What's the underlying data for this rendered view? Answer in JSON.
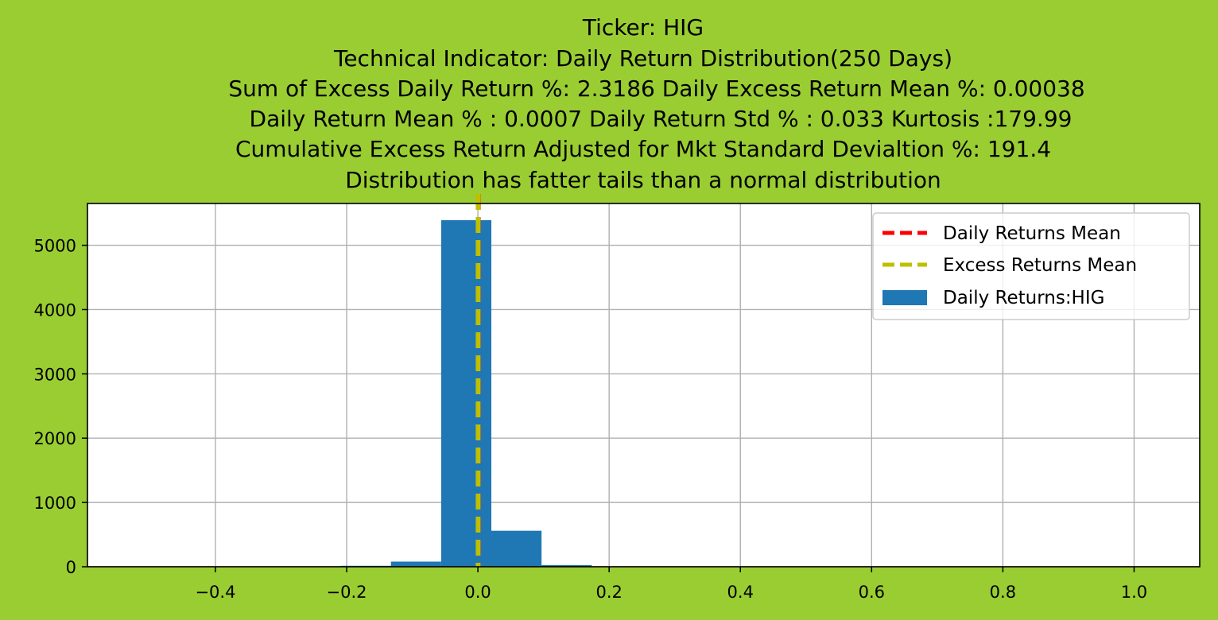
{
  "figure": {
    "background": "#9acd32"
  },
  "chart_data": {
    "type": "bar",
    "title_lines": [
      "Ticker: HIG",
      "Technical Indicator: Daily Return Distribution(250 Days)",
      "Sum of Excess Daily Return %: 2.3186   Daily Excess Return Mean %: 0.00038",
      "Daily Return Mean % : 0.0007    Daily Return Std % : 0.033  Kurtosis :179.99",
      "Cumulative Excess Return Adjusted for Mkt Standard Devialtion %: 191.4",
      "Distribution has fatter tails than a normal distribution"
    ],
    "xlim": [
      -0.595,
      1.1
    ],
    "ylim": [
      0,
      5650
    ],
    "x_ticks": [
      -0.4,
      -0.2,
      0.0,
      0.2,
      0.4,
      0.6,
      0.8,
      1.0
    ],
    "x_tick_labels": [
      "−0.4",
      "−0.2",
      "0.0",
      "0.2",
      "0.4",
      "0.6",
      "0.8",
      "1.0"
    ],
    "y_ticks": [
      0,
      1000,
      2000,
      3000,
      4000,
      5000
    ],
    "y_tick_labels": [
      "0",
      "1000",
      "2000",
      "3000",
      "4000",
      "5000"
    ],
    "grid": true,
    "histogram": {
      "name": "Daily Returns:HIG",
      "color": "#1f77b4",
      "bin_edges": [
        -0.515,
        -0.4385,
        -0.362,
        -0.2855,
        -0.209,
        -0.1325,
        -0.056,
        0.0205,
        0.097,
        0.1735,
        0.25,
        0.3265,
        0.4,
        0.5,
        0.6,
        0.7,
        0.8,
        0.9,
        1.0,
        1.02
      ],
      "counts": [
        1,
        1,
        2,
        4,
        15,
        80,
        5390,
        560,
        25,
        3,
        1,
        1,
        0,
        0,
        0,
        0,
        0,
        0,
        1
      ]
    },
    "vlines": [
      {
        "name": "Daily Returns Mean",
        "x": 0.0007,
        "color": "#ff0000"
      },
      {
        "name": "Excess Returns Mean",
        "x": 0.00038,
        "color": "#bfbf00"
      }
    ],
    "legend": {
      "position": "upper right",
      "entries": [
        {
          "label": "Daily Returns Mean",
          "kind": "dashed-line",
          "color": "#ff0000"
        },
        {
          "label": "Excess Returns Mean",
          "kind": "dashed-line",
          "color": "#bfbf00"
        },
        {
          "label": "Daily Returns:HIG",
          "kind": "patch",
          "color": "#1f77b4"
        }
      ]
    }
  }
}
